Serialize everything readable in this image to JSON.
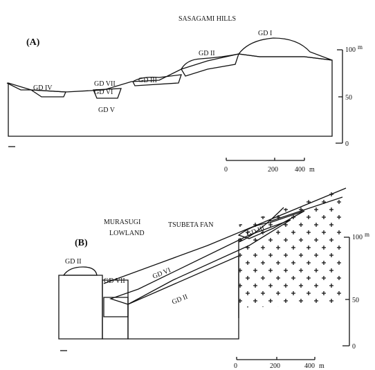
{
  "panel_a": {
    "label": "(A)",
    "title": "SASAGAMI HILLS",
    "units": [
      "GD I",
      "GD II",
      "GD III",
      "GD VII",
      "GD VI",
      "GD V",
      "GD IV"
    ],
    "vertical_scale": {
      "ticks": [
        100,
        50,
        0
      ],
      "unit": "m"
    },
    "horizontal_scale": {
      "ticks": [
        0,
        200,
        400
      ],
      "unit": "m"
    }
  },
  "panel_b": {
    "label": "(B)",
    "fan": "TSUBETA FAN",
    "lowland": [
      "MURASUGI",
      "LOWLAND"
    ],
    "units": [
      "GD II",
      "GD VII",
      "GD VI",
      "GD II",
      "GD III"
    ],
    "vertical_scale": {
      "ticks": [
        100,
        50,
        0
      ],
      "unit": "m"
    },
    "horizontal_scale": {
      "ticks": [
        0,
        200,
        400
      ],
      "unit": "m"
    }
  }
}
